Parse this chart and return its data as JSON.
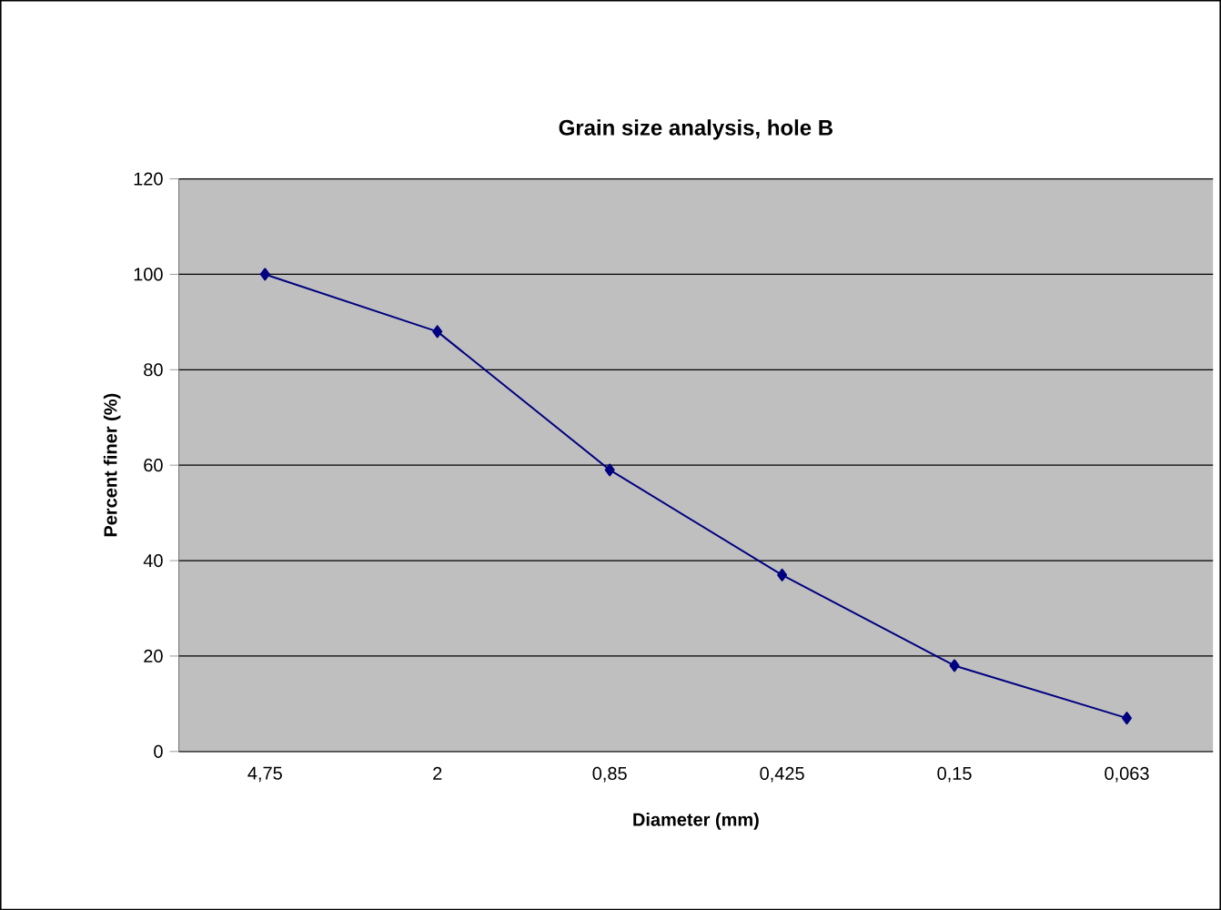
{
  "chart_data": {
    "type": "line",
    "title": "Grain size analysis, hole B",
    "xlabel": "Diameter (mm)",
    "ylabel": "Percent finer (%)",
    "categories": [
      "4,75",
      "2",
      "0,85",
      "0,425",
      "0,15",
      "0,063"
    ],
    "series": [
      {
        "color": "#000080",
        "values": [
          100,
          88,
          59,
          37,
          18,
          7
        ]
      }
    ],
    "ylim": [
      0,
      120
    ],
    "yticks": [
      0,
      20,
      40,
      60,
      80,
      100,
      120
    ],
    "grid": "y",
    "marker": "diamond",
    "line_style": "solid"
  }
}
